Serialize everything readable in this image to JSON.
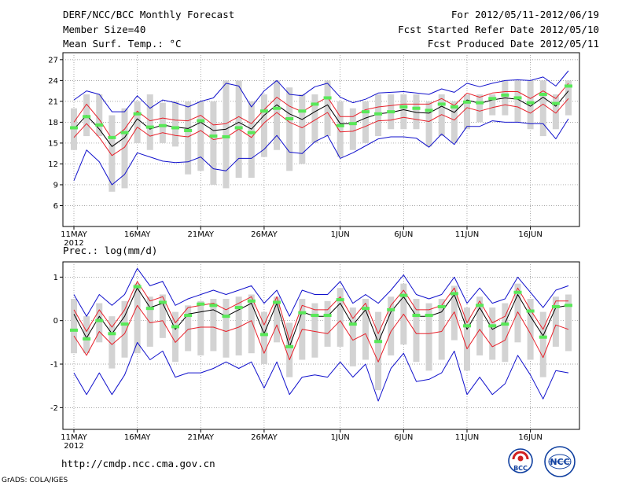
{
  "header": {
    "title_left": "DERF/NCC/BCC Monthly Forecast",
    "member_size": "Member Size=40",
    "variable_top": "Mean Surf. Temp.: °C",
    "forecast_period": "For 2012/05/11-2012/06/19",
    "fcst_started": "Fcst Started Refer Date 2012/05/10",
    "fcst_produced": "Fcst Produced Date 2012/05/11"
  },
  "footer": {
    "url": "http://cmdp.ncc.cma.gov.cn",
    "grads_credit": "GrADS: COLA/IGES",
    "logo_bcc": "BCC",
    "logo_ncc": "NCC"
  },
  "colors": {
    "mean": "#000000",
    "spread": "#e8202a",
    "extreme": "#1010cc",
    "box": "#d3d3d3",
    "marker": "#58e858"
  },
  "chart_data": [
    {
      "type": "line",
      "title": "Mean Surf. Temp.: °C",
      "ylabel": "°C",
      "ylim": [
        3,
        28
      ],
      "yticks": [
        6,
        9,
        12,
        15,
        18,
        21,
        24,
        27
      ],
      "xticks": [
        {
          "day": 0,
          "label": "11MAY",
          "sub": "2012"
        },
        {
          "day": 5,
          "label": "16MAY"
        },
        {
          "day": 10,
          "label": "21MAY"
        },
        {
          "day": 15,
          "label": "26MAY"
        },
        {
          "day": 21,
          "label": "1JUN"
        },
        {
          "day": 26,
          "label": "6JUN"
        },
        {
          "day": 31,
          "label": "11JUN"
        },
        {
          "day": 36,
          "label": "16JUN"
        }
      ],
      "x": [
        0,
        1,
        2,
        3,
        4,
        5,
        6,
        7,
        8,
        9,
        10,
        11,
        12,
        13,
        14,
        15,
        16,
        17,
        18,
        19,
        20,
        21,
        22,
        23,
        24,
        25,
        26,
        27,
        28,
        29,
        30,
        31,
        32,
        33,
        34,
        35,
        36,
        37,
        38,
        39
      ],
      "series": [
        {
          "name": "ensemble_mean",
          "values": [
            17,
            19,
            17,
            14.5,
            15.8,
            18.5,
            17,
            17.6,
            17.3,
            17.1,
            18,
            16.8,
            17,
            18,
            17,
            19,
            20.5,
            19.2,
            18.4,
            19.5,
            20.5,
            17.8,
            17.8,
            18.6,
            19.2,
            19.4,
            19.8,
            19.4,
            19.3,
            20.3,
            19.4,
            21.2,
            20.7,
            21.2,
            21.5,
            21.3,
            20.3,
            21.6,
            20.3,
            22.5
          ]
        },
        {
          "name": "spread_upper",
          "values": [
            18,
            20.6,
            18.4,
            15.6,
            17,
            19.6,
            18.2,
            18.6,
            18.3,
            18.2,
            19,
            17.6,
            17.8,
            18.8,
            17.8,
            19.8,
            21.6,
            20.3,
            19.5,
            20.6,
            21.6,
            18.8,
            18.8,
            19.8,
            20.2,
            20.4,
            20.6,
            20.6,
            20.6,
            21.4,
            20.4,
            22.2,
            21.6,
            22.2,
            22.4,
            22.4,
            21.4,
            22.5,
            21.4,
            23.6
          ]
        },
        {
          "name": "spread_lower",
          "values": [
            15.8,
            17.8,
            15.8,
            13.2,
            14.4,
            17.3,
            16,
            16.5,
            16.1,
            15.9,
            16.8,
            15.5,
            15.8,
            17,
            15.8,
            17.9,
            19.4,
            18,
            17.2,
            18.3,
            19.4,
            16.6,
            16.7,
            17.4,
            18.2,
            18.3,
            18.7,
            18.4,
            18.1,
            19.1,
            18.3,
            20.1,
            19.6,
            20.1,
            20.5,
            20.2,
            19.3,
            20.6,
            19.3,
            21.4
          ]
        },
        {
          "name": "ens_max",
          "values": [
            21.2,
            22.5,
            22,
            19.5,
            19.5,
            21.8,
            20,
            21.2,
            20.8,
            20.2,
            21,
            21.5,
            23.6,
            23.2,
            20.2,
            22.5,
            24,
            22,
            21.8,
            23.1,
            23.6,
            21.6,
            20.8,
            21.3,
            22.2,
            22.3,
            22.4,
            22.2,
            22,
            22.8,
            22.3,
            23.6,
            23.1,
            23.6,
            24,
            24.1,
            24,
            24.5,
            23.2,
            25.4
          ]
        },
        {
          "name": "ens_min",
          "values": [
            9.6,
            14,
            12.3,
            9,
            10.5,
            13.6,
            13,
            12.4,
            12.2,
            12.3,
            13,
            11.3,
            11,
            12.8,
            12.8,
            14.1,
            16.1,
            13.7,
            13.5,
            15.2,
            16.1,
            12.8,
            13.6,
            14.6,
            15.6,
            15.9,
            15.9,
            15.7,
            14.4,
            16.3,
            14.8,
            17.4,
            17.4,
            18.2,
            18,
            18,
            17.8,
            17.8,
            15.6,
            18.5
          ]
        },
        {
          "name": "box_top",
          "values": [
            20,
            22,
            22,
            19,
            20,
            21,
            22,
            20.8,
            21,
            21,
            21,
            21,
            24,
            24,
            21,
            22,
            24,
            23,
            22,
            22,
            24,
            21,
            20,
            21,
            22,
            22,
            22,
            22,
            21,
            22,
            21,
            22,
            22,
            22,
            24,
            24,
            24,
            24,
            22,
            24
          ]
        },
        {
          "name": "box_bottom",
          "values": [
            14,
            16,
            16,
            8,
            8.5,
            15,
            14,
            15,
            14.5,
            10.5,
            11,
            9,
            8.5,
            10,
            10,
            13,
            14,
            11,
            12,
            15,
            16,
            13,
            14,
            15,
            16,
            17,
            17,
            17,
            14.5,
            16,
            15,
            17,
            18,
            19,
            19,
            18,
            17,
            16,
            17,
            19
          ]
        },
        {
          "name": "observed",
          "values": [
            17.2,
            18.8,
            17.6,
            15.8,
            16.5,
            19.2,
            17.3,
            17.5,
            17.2,
            16.8,
            18.2,
            16,
            15.9,
            17.2,
            16.5,
            19.6,
            20,
            18.5,
            19.6,
            20.6,
            21.5,
            17.5,
            17.8,
            19.5,
            19.2,
            19.5,
            20.2,
            20,
            19.7,
            20.6,
            20.2,
            20.9,
            20.8,
            21.4,
            21.9,
            21.5,
            20.8,
            22,
            20.7,
            23.2
          ]
        }
      ]
    },
    {
      "type": "line",
      "title": "Prec.: log(mm/d)",
      "ylabel": "log(mm/d)",
      "ylim": [
        -2.5,
        1.35
      ],
      "yticks": [
        -2,
        -1,
        0,
        1
      ],
      "xticks": [
        {
          "day": 0,
          "label": "11MAY",
          "sub": "2012"
        },
        {
          "day": 5,
          "label": "16MAY"
        },
        {
          "day": 10,
          "label": "21MAY"
        },
        {
          "day": 15,
          "label": "26MAY"
        },
        {
          "day": 21,
          "label": "1JUN"
        },
        {
          "day": 26,
          "label": "6JUN"
        },
        {
          "day": 31,
          "label": "11JUN"
        },
        {
          "day": 36,
          "label": "16JUN"
        }
      ],
      "x": [
        0,
        1,
        2,
        3,
        4,
        5,
        6,
        7,
        8,
        9,
        10,
        11,
        12,
        13,
        14,
        15,
        16,
        17,
        18,
        19,
        20,
        21,
        22,
        23,
        24,
        25,
        26,
        27,
        28,
        29,
        30,
        31,
        32,
        33,
        34,
        35,
        36,
        37,
        38,
        39
      ],
      "series": [
        {
          "name": "ensemble_mean",
          "values": [
            0.15,
            -0.4,
            0.1,
            -0.3,
            0.1,
            0.75,
            0.3,
            0.4,
            -0.2,
            0.15,
            0.2,
            0.25,
            0.1,
            0.25,
            0.4,
            -0.3,
            0.4,
            -0.6,
            0.2,
            0.1,
            0.1,
            0.4,
            -0.1,
            0.25,
            -0.5,
            0.2,
            0.55,
            0.1,
            0.1,
            0.2,
            0.6,
            -0.2,
            0.3,
            -0.2,
            -0.05,
            0.6,
            0.1,
            -0.35,
            0.3,
            0.35
          ]
        },
        {
          "name": "spread_upper",
          "values": [
            0.25,
            -0.25,
            0.25,
            -0.15,
            0.25,
            0.9,
            0.45,
            0.55,
            -0.05,
            0.3,
            0.35,
            0.4,
            0.25,
            0.4,
            0.55,
            -0.1,
            0.55,
            -0.45,
            0.35,
            0.25,
            0.25,
            0.55,
            0.05,
            0.4,
            -0.3,
            0.35,
            0.7,
            0.25,
            0.25,
            0.35,
            0.75,
            -0.05,
            0.45,
            -0.05,
            0.1,
            0.75,
            0.25,
            -0.2,
            0.45,
            0.45
          ]
        },
        {
          "name": "spread_lower",
          "values": [
            -0.35,
            -0.8,
            -0.25,
            -0.55,
            -0.3,
            0.35,
            -0.05,
            0,
            -0.5,
            -0.2,
            -0.15,
            -0.15,
            -0.25,
            -0.15,
            0,
            -0.75,
            -0.1,
            -0.9,
            -0.2,
            -0.25,
            -0.3,
            0,
            -0.45,
            -0.3,
            -0.95,
            -0.25,
            0.15,
            -0.3,
            -0.3,
            -0.25,
            0.2,
            -0.65,
            -0.2,
            -0.6,
            -0.45,
            0.2,
            -0.3,
            -0.85,
            -0.1,
            -0.2
          ]
        },
        {
          "name": "ens_max",
          "values": [
            0.6,
            0.1,
            0.6,
            0.35,
            0.6,
            1.2,
            0.8,
            0.9,
            0.35,
            0.5,
            0.6,
            0.7,
            0.6,
            0.7,
            0.8,
            0.4,
            0.7,
            0.1,
            0.7,
            0.6,
            0.6,
            0.9,
            0.4,
            0.6,
            0.4,
            0.7,
            1.05,
            0.6,
            0.5,
            0.6,
            1.0,
            0.4,
            0.75,
            0.4,
            0.5,
            1.0,
            0.65,
            0.3,
            0.7,
            0.8
          ]
        },
        {
          "name": "ens_min",
          "values": [
            -1.2,
            -1.7,
            -1.2,
            -1.7,
            -1.25,
            -0.5,
            -0.9,
            -0.7,
            -1.3,
            -1.2,
            -1.2,
            -1.1,
            -0.95,
            -1.1,
            -0.95,
            -1.55,
            -0.95,
            -1.7,
            -1.3,
            -1.25,
            -1.3,
            -0.95,
            -1.3,
            -1.0,
            -1.85,
            -1.1,
            -0.75,
            -1.4,
            -1.35,
            -1.2,
            -0.7,
            -1.7,
            -1.3,
            -1.7,
            -1.45,
            -0.8,
            -1.25,
            -1.8,
            -1.15,
            -1.2
          ]
        },
        {
          "name": "box_top",
          "values": [
            0.5,
            0.1,
            0.4,
            0.1,
            0.45,
            0.85,
            0.55,
            0.6,
            0.2,
            0.35,
            0.45,
            0.5,
            0.5,
            0.55,
            0.6,
            0.2,
            0.55,
            -0.05,
            0.5,
            0.4,
            0.45,
            0.75,
            0.3,
            0.5,
            0.2,
            0.55,
            0.85,
            0.5,
            0.4,
            0.5,
            0.8,
            0.3,
            0.55,
            0.3,
            0.4,
            0.85,
            0.5,
            0.2,
            0.55,
            0.6
          ]
        },
        {
          "name": "box_bottom",
          "values": [
            -0.75,
            -0.75,
            -0.5,
            -1.1,
            -0.85,
            -0.75,
            -0.6,
            -0.4,
            -0.95,
            -0.7,
            -0.8,
            -0.7,
            -0.85,
            -0.8,
            -0.75,
            -1.0,
            -0.5,
            -1.3,
            -0.9,
            -0.85,
            -0.6,
            -0.6,
            -1.05,
            -0.9,
            -1.6,
            -0.8,
            -0.55,
            -0.95,
            -1.15,
            -0.9,
            -0.45,
            -1.15,
            -0.8,
            -0.9,
            -0.95,
            -0.5,
            -0.9,
            -1.3,
            -0.6,
            -0.7
          ]
        },
        {
          "name": "observed",
          "values": [
            -0.22,
            -0.42,
            0,
            -0.3,
            -0.08,
            0.78,
            0.28,
            0.42,
            -0.14,
            0.12,
            0.38,
            0.35,
            0.1,
            0.3,
            0.45,
            -0.32,
            0.42,
            -0.6,
            0.18,
            0.12,
            0.12,
            0.48,
            -0.08,
            0.28,
            -0.48,
            0.25,
            0.58,
            0.12,
            0.12,
            0.32,
            0.62,
            -0.12,
            0.35,
            -0.12,
            -0.08,
            0.65,
            0.22,
            -0.38,
            0.32,
            0.35
          ]
        }
      ]
    }
  ]
}
